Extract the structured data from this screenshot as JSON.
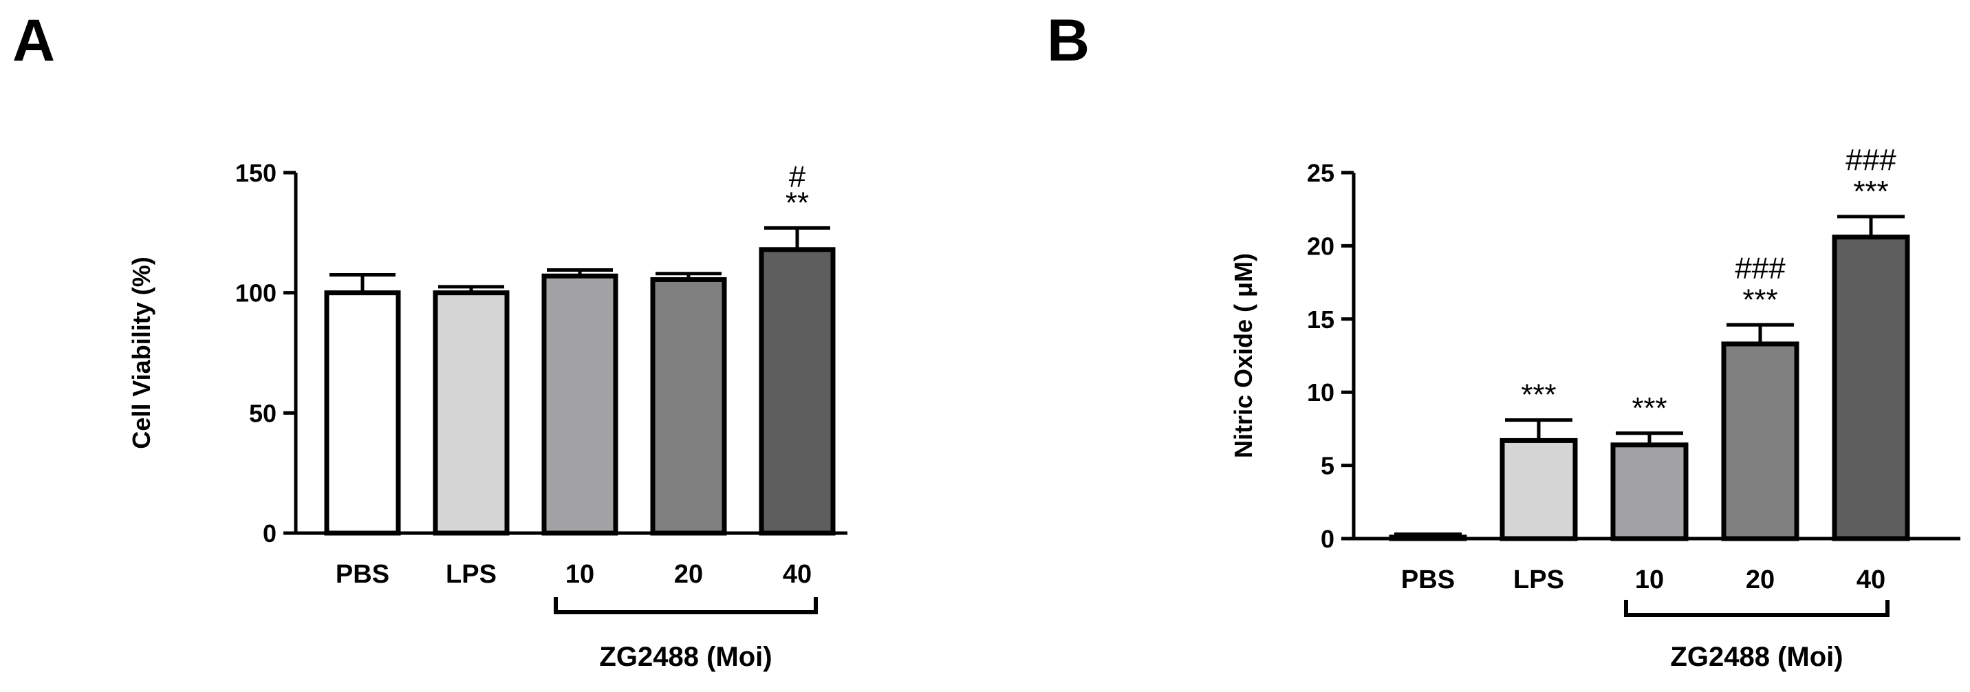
{
  "chart_data": [
    {
      "type": "bar",
      "panel": "A",
      "ylabel": "Cell Viability (%)",
      "ylim": [
        0,
        150
      ],
      "yticks": [
        0,
        50,
        100,
        150
      ],
      "categories": [
        "PBS",
        "LPS",
        "10",
        "20",
        "40"
      ],
      "values": [
        100,
        100,
        107,
        105.5,
        118
      ],
      "errors": [
        7.5,
        2.5,
        2.5,
        2.5,
        9
      ],
      "colors": [
        "#ffffff",
        "#d6d6d6",
        "#a3a3a6",
        "#808080",
        "#5e5e5e"
      ],
      "significance": [
        "",
        "",
        "",
        "",
        "**"
      ],
      "significance2": [
        "",
        "",
        "",
        "",
        "#"
      ],
      "group_label": "ZG2488 (Moi)"
    },
    {
      "type": "bar",
      "panel": "B",
      "ylabel": "Nitric Oxide ( μM)",
      "ylim": [
        0,
        25
      ],
      "yticks": [
        0,
        5,
        10,
        15,
        20,
        25
      ],
      "categories": [
        "PBS",
        "LPS",
        "10",
        "20",
        "40"
      ],
      "values": [
        0.1,
        6.7,
        6.4,
        13.3,
        20.6
      ],
      "errors": [
        0.2,
        1.4,
        0.8,
        1.3,
        1.4
      ],
      "colors": [
        "#ffffff",
        "#d6d6d6",
        "#a3a3a6",
        "#808080",
        "#5e5e5e"
      ],
      "significance": [
        "",
        "***",
        "***",
        "***",
        "***"
      ],
      "significance2": [
        "",
        "",
        "",
        "###",
        "###"
      ],
      "group_label": "ZG2488 (Moi)"
    }
  ]
}
